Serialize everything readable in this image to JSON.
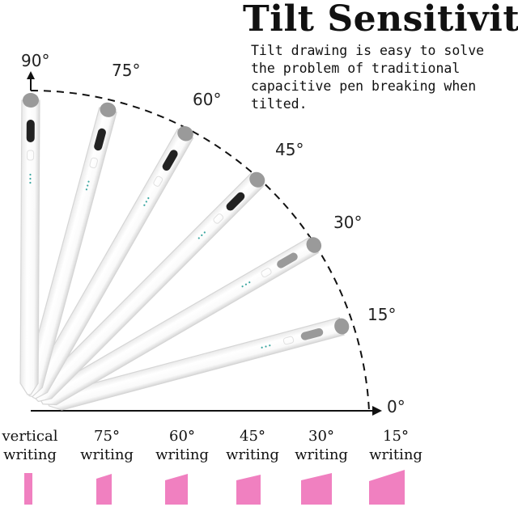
{
  "title": "Tilt Sensitivity",
  "description": "Tilt drawing is easy to solve the problem of traditional capacitive pen breaking when tilted.",
  "angle_labels": [
    "90°",
    "75°",
    "60°",
    "45°",
    "30°",
    "15°",
    "0°"
  ],
  "captions": [
    {
      "angle": "vertical",
      "word": "writing"
    },
    {
      "angle": "75°",
      "word": "writing"
    },
    {
      "angle": "60°",
      "word": "writing"
    },
    {
      "angle": "45°",
      "word": "writing"
    },
    {
      "angle": "30°",
      "word": "writing"
    },
    {
      "angle": "15°",
      "word": "writing"
    }
  ],
  "colors": {
    "pen_body": "#ffffff",
    "pen_outline": "#d5d5d5",
    "pen_tip": "#9a9a9a",
    "stroke_sample": "#f080c0",
    "dashed_arc": "#111111"
  }
}
